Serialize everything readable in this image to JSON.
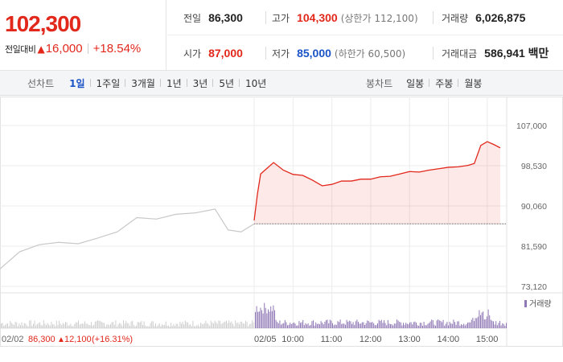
{
  "summary": {
    "current_price": "102,300",
    "change_label": "전일대비",
    "change_direction_icon": "up-triangle-icon",
    "change_amount": "16,000",
    "change_rate": "+18.54%",
    "prev_close": {
      "label": "전일",
      "value": "86,300"
    },
    "high": {
      "label": "고가",
      "value": "104,300",
      "sub": "(상한가 112,100)"
    },
    "volume": {
      "label": "거래량",
      "value": "6,026,875"
    },
    "open": {
      "label": "시가",
      "value": "87,000"
    },
    "low": {
      "label": "저가",
      "value": "85,000",
      "sub": "(하한가 60,500)"
    },
    "trade_value": {
      "label": "거래대금",
      "value": "586,941 백만"
    }
  },
  "toolbar": {
    "line_chart_title": "선차트",
    "periods": [
      "1일",
      "1주일",
      "3개월",
      "1년",
      "3년",
      "5년",
      "10년"
    ],
    "active_period": "1일",
    "candle_chart_title": "봉차트",
    "candle_periods": [
      "일봉",
      "주봉",
      "월봉"
    ]
  },
  "colors": {
    "up": "#e2271b",
    "down": "#1a53c7",
    "prev_day_line": "#c8c8c8",
    "volume_today": "#8f78b5"
  },
  "chart_data": {
    "type": "line",
    "y_ticks": [
      "107,000",
      "98,530",
      "90,060",
      "81,590",
      "73,120"
    ],
    "ylim": [
      73120,
      107000
    ],
    "x_ticks": [
      "02/05",
      "10:00",
      "11:00",
      "12:00",
      "13:00",
      "14:00",
      "15:00"
    ],
    "grid": true,
    "previous_close": 86300,
    "series": [
      {
        "x": [
          "09:00",
          "09:05",
          "09:10",
          "09:20",
          "09:30",
          "09:45",
          "10:00",
          "10:15",
          "10:30",
          "10:45",
          "11:00",
          "11:15",
          "11:30",
          "11:45",
          "12:00",
          "12:15",
          "12:30",
          "12:45",
          "13:00",
          "13:15",
          "13:30",
          "13:45",
          "14:00",
          "14:15",
          "14:30",
          "14:40",
          "14:50",
          "15:00",
          "15:10",
          "15:20"
        ],
        "values": [
          87000,
          92500,
          96800,
          98000,
          99200,
          97600,
          96700,
          96500,
          95500,
          94300,
          94600,
          95300,
          95300,
          95700,
          95700,
          96200,
          96300,
          96800,
          97300,
          97200,
          97600,
          97900,
          98200,
          98300,
          98600,
          99000,
          102800,
          103600,
          103000,
          102300
        ]
      }
    ],
    "prev_day_series": {
      "x": [
        "09:00",
        "09:30",
        "10:00",
        "10:30",
        "11:00",
        "11:30",
        "12:00",
        "12:30",
        "13:00",
        "13:30",
        "14:00",
        "14:30",
        "14:50",
        "15:10",
        "15:30"
      ],
      "values": [
        76800,
        80400,
        81900,
        82400,
        82100,
        83300,
        84600,
        87600,
        87300,
        88300,
        88600,
        89400,
        85000,
        84600,
        86300
      ]
    },
    "volume_legend": "거래량",
    "prev_day_caption": {
      "date": "02/02",
      "close": "86,300",
      "change": "12,100",
      "rate": "(+16.31%)"
    }
  }
}
